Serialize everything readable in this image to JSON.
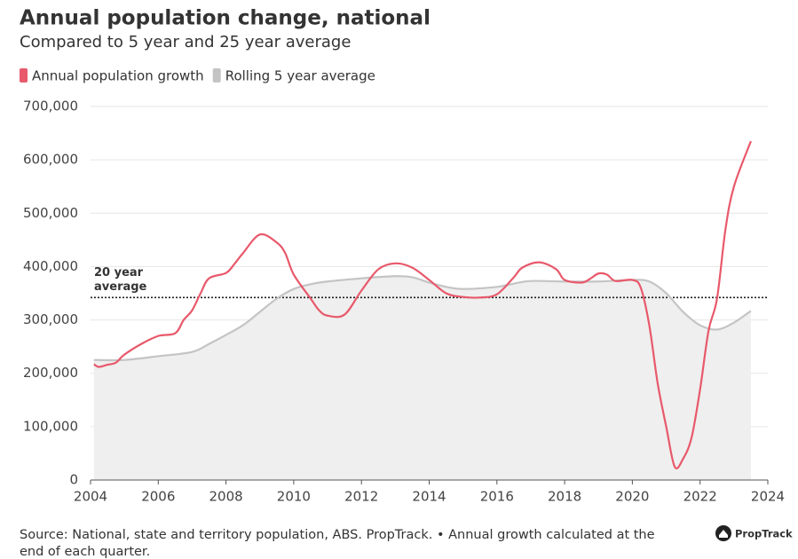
{
  "chart_data": {
    "type": "line",
    "title": "Annual population change, national",
    "subtitle": "Compared to 5 year and 25 year average",
    "series": [
      {
        "name": "Annual population growth",
        "color": "#e8596b",
        "x": [
          2004.1,
          2004.25,
          2004.5,
          2004.75,
          2005,
          2005.5,
          2006,
          2006.5,
          2006.75,
          2007,
          2007.25,
          2007.5,
          2008,
          2008.25,
          2008.5,
          2009,
          2009.5,
          2009.75,
          2010,
          2010.5,
          2010.75,
          2011,
          2011.5,
          2012,
          2012.5,
          2013,
          2013.5,
          2014,
          2014.5,
          2015,
          2015.5,
          2016,
          2016.5,
          2016.75,
          2017.25,
          2017.75,
          2018,
          2018.5,
          2018.75,
          2019,
          2019.25,
          2019.5,
          2020,
          2020.25,
          2020.5,
          2020.75,
          2021,
          2021.25,
          2021.5,
          2021.75,
          2022,
          2022.25,
          2022.5,
          2022.75,
          2023,
          2023.5
        ],
        "values": [
          217000,
          212000,
          216000,
          220000,
          235000,
          255000,
          270000,
          275000,
          300000,
          318000,
          350000,
          378000,
          388000,
          405000,
          425000,
          460000,
          445000,
          425000,
          385000,
          340000,
          318000,
          308000,
          310000,
          355000,
          395000,
          406000,
          398000,
          375000,
          350000,
          343000,
          342000,
          348000,
          380000,
          398000,
          408000,
          395000,
          375000,
          370000,
          377000,
          387000,
          385000,
          373000,
          375000,
          360000,
          290000,
          180000,
          100000,
          25000,
          40000,
          80000,
          170000,
          280000,
          340000,
          470000,
          550000,
          635000
        ]
      },
      {
        "name": "Rolling 5 year average",
        "color": "#c4c4c4",
        "x": [
          2004.1,
          2005,
          2006,
          2007,
          2007.5,
          2008,
          2008.5,
          2009,
          2009.5,
          2010,
          2010.5,
          2011,
          2012,
          2013,
          2013.5,
          2014,
          2014.5,
          2015,
          2016,
          2016.5,
          2017,
          2018,
          2019,
          2020,
          2020.5,
          2021,
          2021.5,
          2022,
          2022.5,
          2023,
          2023.5
        ],
        "values": [
          225000,
          225000,
          232000,
          240000,
          255000,
          272000,
          290000,
          315000,
          340000,
          358000,
          367000,
          372000,
          378000,
          382000,
          380000,
          370000,
          362000,
          358000,
          362000,
          368000,
          373000,
          372000,
          372000,
          375000,
          372000,
          350000,
          315000,
          290000,
          282000,
          295000,
          317000
        ]
      }
    ],
    "reference_line": {
      "value": 342000,
      "label": [
        "20 year",
        "average"
      ]
    },
    "xlim": [
      2004,
      2024
    ],
    "xticks": [
      2004,
      2006,
      2008,
      2010,
      2012,
      2014,
      2016,
      2018,
      2020,
      2022,
      2024
    ],
    "ylim": [
      0,
      700000
    ],
    "yticks": [
      0,
      {
        "value": 100000,
        "label": "100,000"
      },
      {
        "value": 200000,
        "label": "200,000"
      },
      {
        "value": 300000,
        "label": "300,000"
      },
      {
        "value": 400000,
        "label": "400,000"
      },
      {
        "value": 500000,
        "label": "500,000"
      },
      {
        "value": 600000,
        "label": "600,000"
      },
      {
        "value": 700000,
        "label": "700,000"
      }
    ],
    "grid": true,
    "area_fill": "#efefef",
    "source": "Source: National, state and territory population, ABS. PropTrack. • Annual growth calculated at the",
    "source_2": "end of each quarter.",
    "brand": "PropTrack"
  }
}
